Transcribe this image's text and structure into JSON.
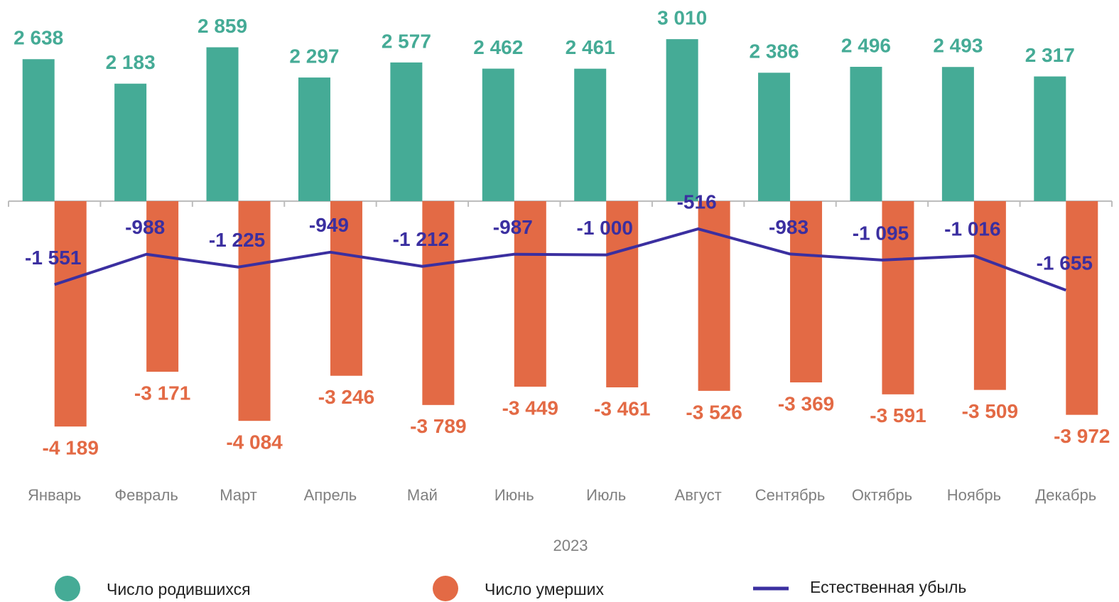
{
  "chart_data": {
    "type": "bar",
    "xlabel": "2023",
    "categories": [
      "Январь",
      "Февраль",
      "Март",
      "Апрель",
      "Май",
      "Июнь",
      "Июль",
      "Август",
      "Сентябрь",
      "Октябрь",
      "Ноябрь",
      "Декабрь"
    ],
    "ylim": [
      -5000,
      3500
    ],
    "series": [
      {
        "name": "Число родившихся",
        "type": "bar",
        "color": "#45ab96",
        "values": [
          2638,
          2183,
          2859,
          2297,
          2577,
          2462,
          2461,
          3010,
          2386,
          2496,
          2493,
          2317
        ],
        "value_labels": [
          "2 638",
          "2 183",
          "2 859",
          "2 297",
          "2 577",
          "2 462",
          "2 461",
          "3 010",
          "2 386",
          "2 496",
          "2 493",
          "2 317"
        ]
      },
      {
        "name": "Число умерших",
        "type": "bar",
        "color": "#e36a45",
        "values": [
          -4189,
          -3171,
          -4084,
          -3246,
          -3789,
          -3449,
          -3461,
          -3526,
          -3369,
          -3591,
          -3509,
          -3972
        ],
        "value_labels": [
          "-4 189",
          "-3 171",
          "-4 084",
          "-3 246",
          "-3 789",
          "-3 449",
          "-3 461",
          "-3 526",
          "-3 369",
          "-3 591",
          "-3 509",
          "-3 972"
        ]
      },
      {
        "name": "Естественная убыль",
        "type": "line",
        "color": "#3b2fa0",
        "values": [
          -1551,
          -988,
          -1225,
          -949,
          -1212,
          -987,
          -1000,
          -516,
          -983,
          -1095,
          -1016,
          -1655
        ],
        "value_labels": [
          "-1 551",
          "-988",
          "-1 225",
          "-949",
          "-1 212",
          "-987",
          "-1 000",
          "-516",
          "-983",
          "-1 095",
          "-1 016",
          "-1 655"
        ]
      }
    ]
  }
}
